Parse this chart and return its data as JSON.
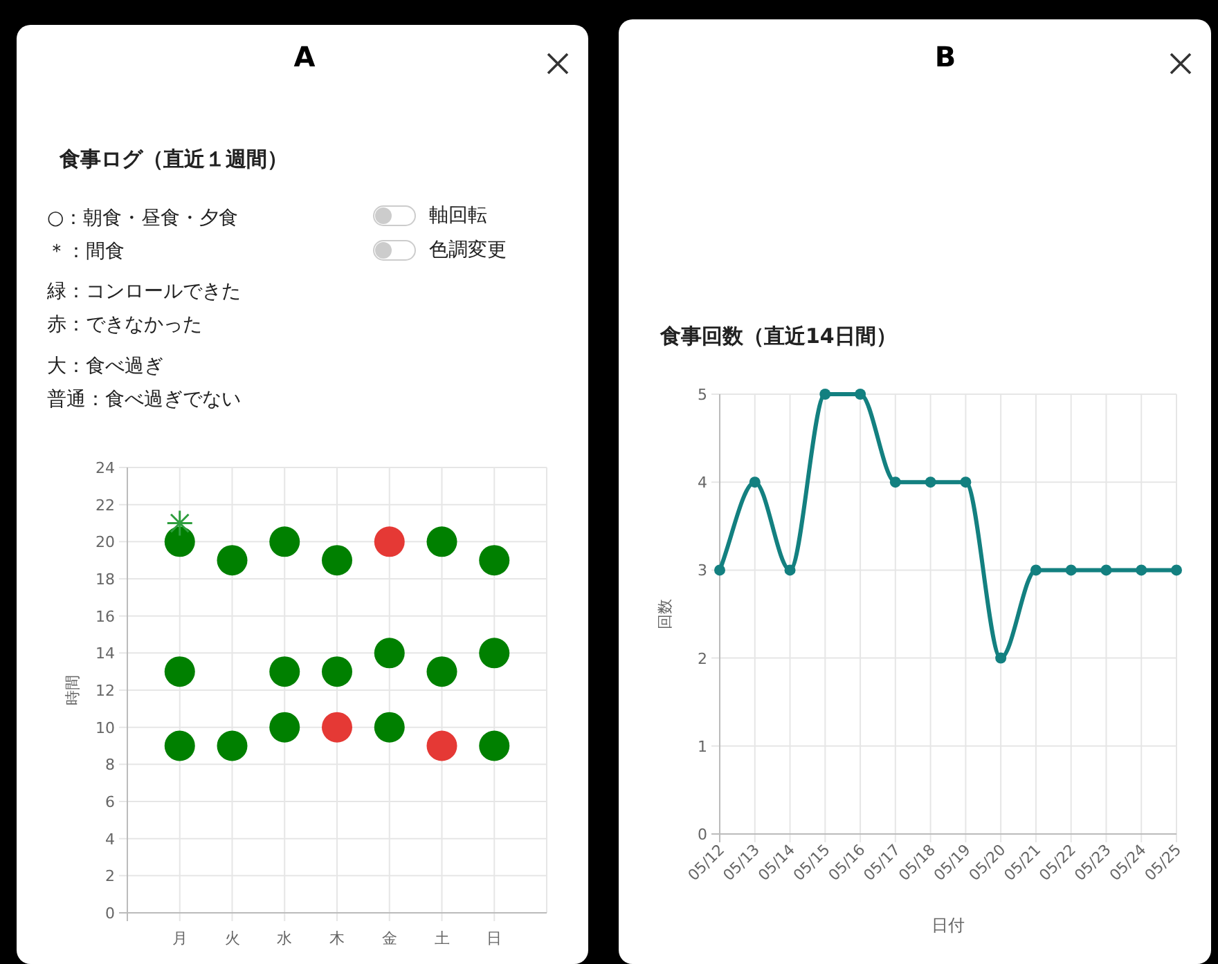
{
  "chart_data": [
    {
      "type": "scatter",
      "title": "食事ログ（直近１週間）",
      "ylabel": "時間",
      "categories": [
        "月",
        "火",
        "水",
        "木",
        "金",
        "土",
        "日"
      ],
      "ylim": [
        0,
        24
      ],
      "yticks": [
        0,
        2,
        4,
        6,
        8,
        10,
        12,
        14,
        16,
        18,
        20,
        22,
        24
      ],
      "grid": true,
      "annotations": [
        "A",
        "○：朝食・昼食・夕食",
        "＊：間食",
        "緑：コンロールできた",
        "赤：できなかった",
        "大：食べ過ぎ",
        "普通：食べ過ぎでない",
        "軸回転",
        "色調変更"
      ],
      "series": [
        {
          "color": "#008000",
          "marker": "circle",
          "x": [
            "月",
            "月",
            "月",
            "火",
            "火",
            "水",
            "水",
            "水",
            "木",
            "木",
            "金",
            "金",
            "土",
            "土",
            "日",
            "日",
            "日"
          ],
          "values": [
            9,
            13,
            20,
            9,
            19,
            10,
            13,
            20,
            13,
            19,
            10,
            14,
            13,
            20,
            9,
            14,
            19
          ]
        },
        {
          "color": "#e53935",
          "marker": "circle",
          "x": [
            "木",
            "金",
            "土"
          ],
          "values": [
            10,
            20,
            9
          ]
        },
        {
          "color": "#2e9e3e",
          "marker": "cross",
          "x": [
            "月"
          ],
          "values": [
            21
          ]
        }
      ]
    },
    {
      "type": "line",
      "title": "食事回数（直近14日間）",
      "xlabel": "日付",
      "ylabel": "回数",
      "categories": [
        "05/12",
        "05/13",
        "05/14",
        "05/15",
        "05/16",
        "05/17",
        "05/18",
        "05/19",
        "05/20",
        "05/21",
        "05/22",
        "05/23",
        "05/24",
        "05/25"
      ],
      "ylim": [
        0,
        5
      ],
      "yticks": [
        0,
        1,
        2,
        3,
        4,
        5
      ],
      "grid": true,
      "marker": "circle",
      "line_style": "solid",
      "annotations": [
        "B"
      ],
      "series": [
        {
          "color": "#138080",
          "values": [
            3,
            4,
            3,
            5,
            5,
            4,
            4,
            4,
            2,
            3,
            3,
            3,
            3,
            3
          ]
        }
      ]
    }
  ]
}
